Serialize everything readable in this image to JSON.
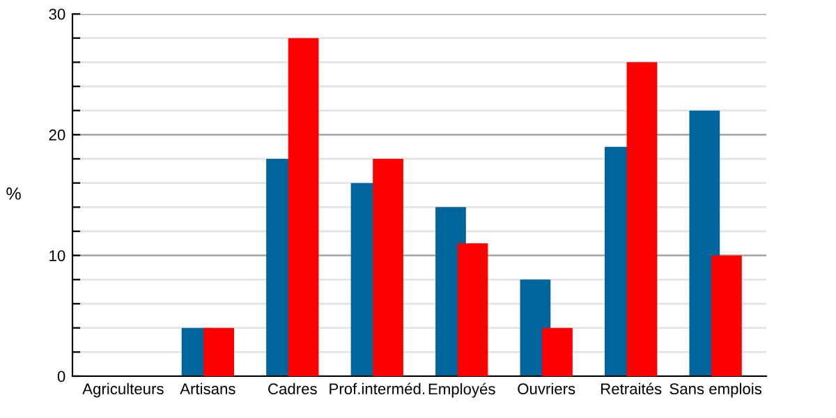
{
  "chart_data": {
    "type": "bar",
    "ylabel": "%",
    "categories": [
      "Agriculteurs",
      "Artisans",
      "Cadres",
      "Prof.interméd.",
      "Employés",
      "Ouvriers",
      "Retraités",
      "Sans emplois"
    ],
    "series": [
      {
        "color": "#00659a",
        "values": [
          0,
          4,
          18,
          16,
          14,
          8,
          19,
          22
        ]
      },
      {
        "color": "#ff0000",
        "values": [
          0,
          4,
          28,
          18,
          11,
          4,
          26,
          10
        ]
      }
    ],
    "ylim": [
      0,
      30
    ],
    "yticks": [
      0,
      {
        "value": 2,
        "label": null
      },
      {
        "value": 4,
        "label": null
      },
      {
        "value": 6,
        "label": null
      },
      {
        "value": 8,
        "label": null
      },
      10,
      {
        "value": 12,
        "label": null
      },
      {
        "value": 14,
        "label": null
      },
      {
        "value": 16,
        "label": null
      },
      {
        "value": 18,
        "label": null
      },
      20,
      {
        "value": 22,
        "label": null
      },
      {
        "value": 24,
        "label": null
      },
      {
        "value": 26,
        "label": null
      },
      {
        "value": 28,
        "label": null
      },
      30
    ],
    "grid": "y"
  }
}
